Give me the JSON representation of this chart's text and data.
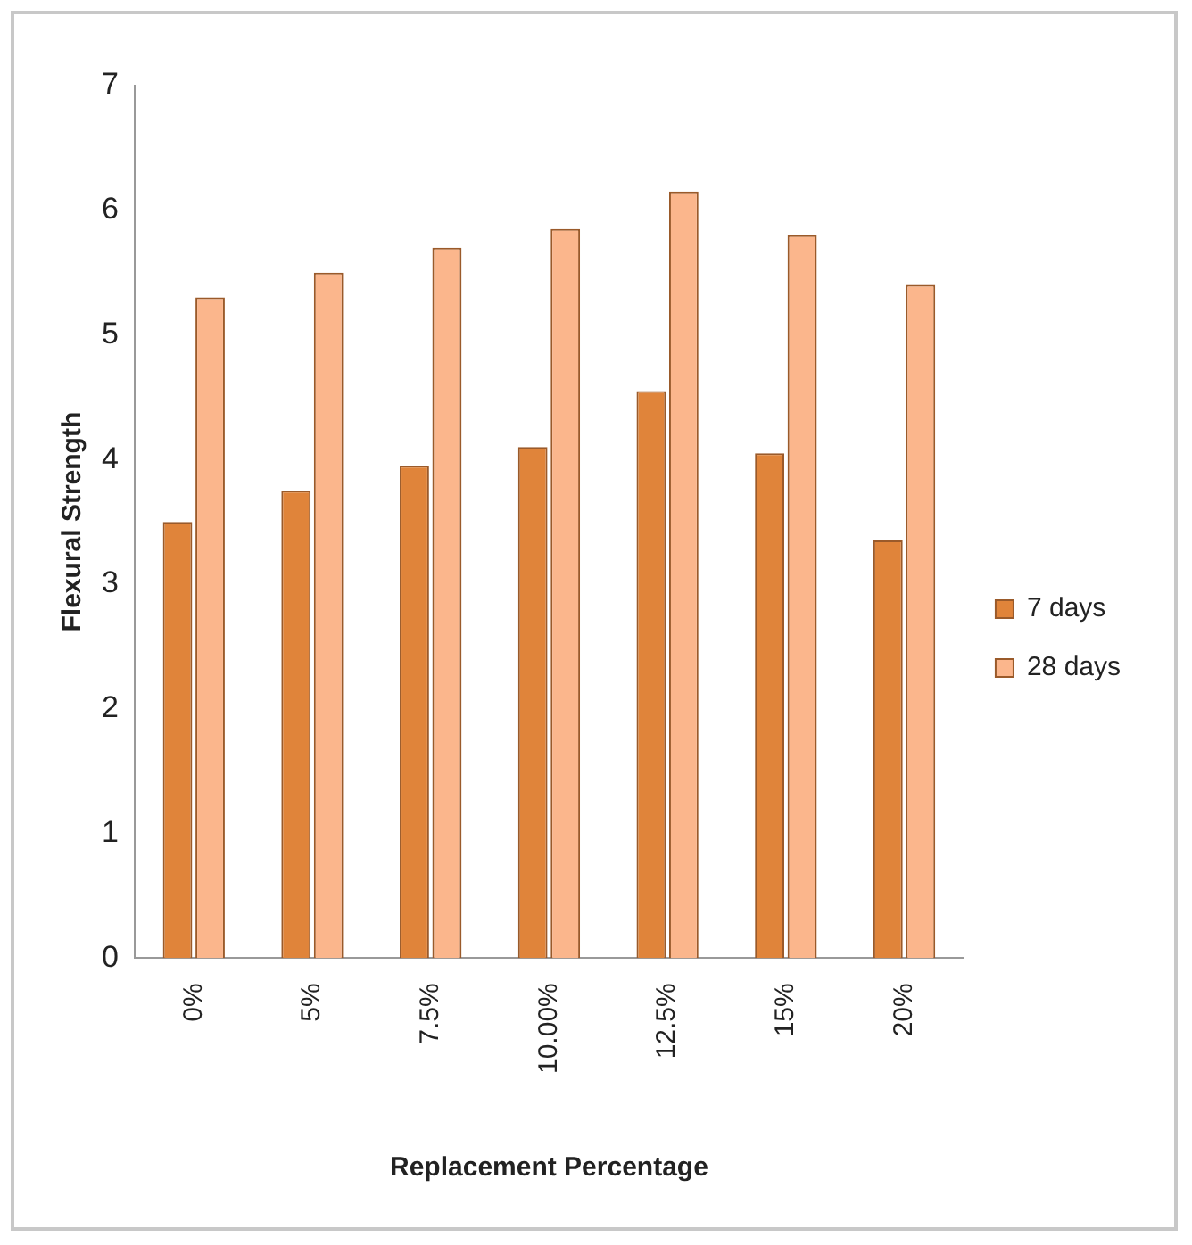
{
  "chart_data": {
    "type": "bar",
    "xlabel": "Replacement Percentage",
    "ylabel": "Flexural Strength",
    "categories": [
      "0%",
      "5%",
      "7.5%",
      "10.00%",
      "12.5%",
      "15%",
      "20%"
    ],
    "series": [
      {
        "name": "7 days",
        "color": "#e0843a",
        "values": [
          3.5,
          3.75,
          3.95,
          4.1,
          4.55,
          4.05,
          3.35
        ]
      },
      {
        "name": "28 days",
        "color": "#fbb68c",
        "values": [
          5.3,
          5.5,
          5.7,
          5.85,
          6.15,
          5.8,
          5.4
        ]
      }
    ],
    "ylim": [
      0,
      7
    ],
    "yticks": [
      0,
      1,
      2,
      3,
      4,
      5,
      6,
      7
    ],
    "grid": false,
    "legend": "right"
  }
}
